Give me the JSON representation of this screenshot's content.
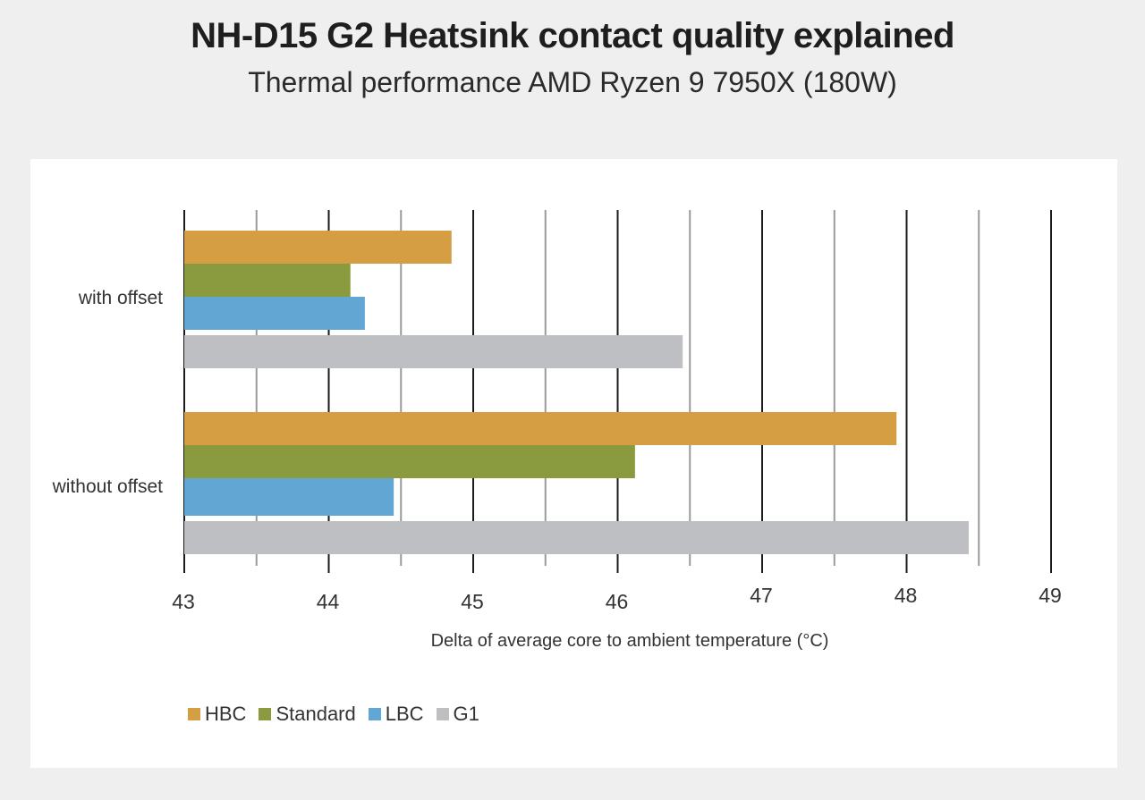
{
  "chart_data": {
    "type": "bar",
    "orientation": "horizontal",
    "title": "NH-D15 G2 Heatsink contact quality explained",
    "subtitle": "Thermal performance AMD Ryzen 9 7950X (180W)",
    "xlabel": "Delta of average core to ambient temperature (°C)",
    "ylabel": "",
    "xlim": [
      43,
      49
    ],
    "xticks": [
      "43",
      "44",
      "45",
      "46",
      "47",
      "48",
      "49"
    ],
    "categories": [
      "with offset",
      "without offset"
    ],
    "series": [
      {
        "name": "HBC",
        "color": "#d59e43",
        "values": [
          44.85,
          47.93
        ]
      },
      {
        "name": "Standard",
        "color": "#8a9a3f",
        "values": [
          44.15,
          46.12
        ]
      },
      {
        "name": "LBC",
        "color": "#62a6d3",
        "values": [
          44.25,
          44.45
        ]
      },
      {
        "name": "G1",
        "color": "#bebfc3",
        "values": [
          46.45,
          48.43
        ]
      }
    ],
    "grid": true,
    "legend_position": "bottom-left"
  }
}
